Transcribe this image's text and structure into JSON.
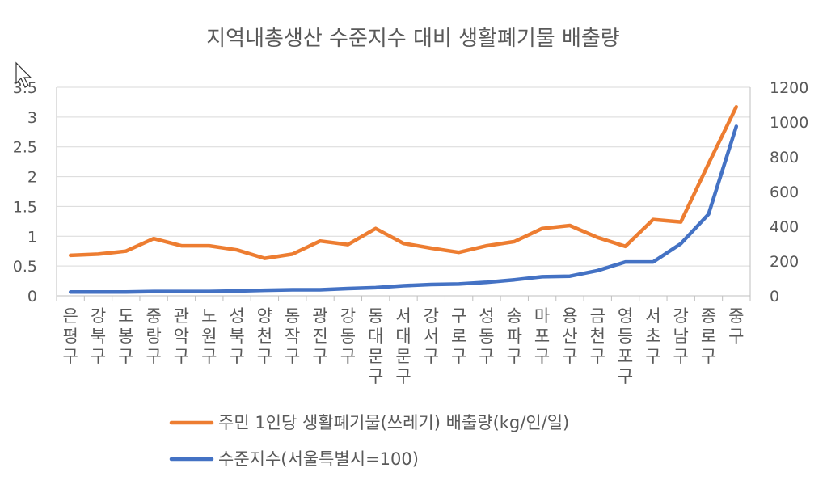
{
  "chart_data": {
    "type": "line",
    "title": "지역내총생산 수준지수 대비 생활폐기물 배출량",
    "categories": [
      "은평구",
      "강북구",
      "도봉구",
      "중랑구",
      "관악구",
      "노원구",
      "성북구",
      "양천구",
      "동작구",
      "광진구",
      "강동구",
      "동대문구",
      "서대문구",
      "강서구",
      "구로구",
      "성동구",
      "송파구",
      "마포구",
      "용산구",
      "금천구",
      "영등포구",
      "서초구",
      "강남구",
      "종로구",
      "중구"
    ],
    "y_left": {
      "min": 0,
      "max": 3.5,
      "ticks": [
        "0",
        "0.5",
        "1",
        "1.5",
        "2",
        "2.5",
        "3",
        "3.5"
      ]
    },
    "y_right": {
      "min": 0,
      "max": 1200,
      "ticks": [
        "0",
        "200",
        "400",
        "600",
        "800",
        "1000",
        "1200"
      ]
    },
    "series": [
      {
        "name": "주민 1인당 생활폐기물(쓰레기) 배출량(kg/인/일)",
        "axis": "left",
        "color": "#ED7D31",
        "values": [
          0.68,
          0.7,
          0.75,
          0.96,
          0.84,
          0.84,
          0.77,
          0.63,
          0.7,
          0.92,
          0.86,
          1.13,
          0.88,
          0.8,
          0.73,
          0.84,
          0.91,
          1.13,
          1.18,
          0.98,
          0.83,
          1.28,
          1.24,
          2.22,
          3.17
        ]
      },
      {
        "name": "수준지수(서울특별시=100)",
        "axis": "right",
        "color": "#4472C4",
        "values": [
          22,
          22,
          22,
          25,
          25,
          25,
          28,
          32,
          35,
          35,
          42,
          47,
          58,
          65,
          68,
          78,
          92,
          110,
          113,
          145,
          195,
          195,
          300,
          470,
          975
        ]
      }
    ],
    "legend_position": "bottom"
  }
}
